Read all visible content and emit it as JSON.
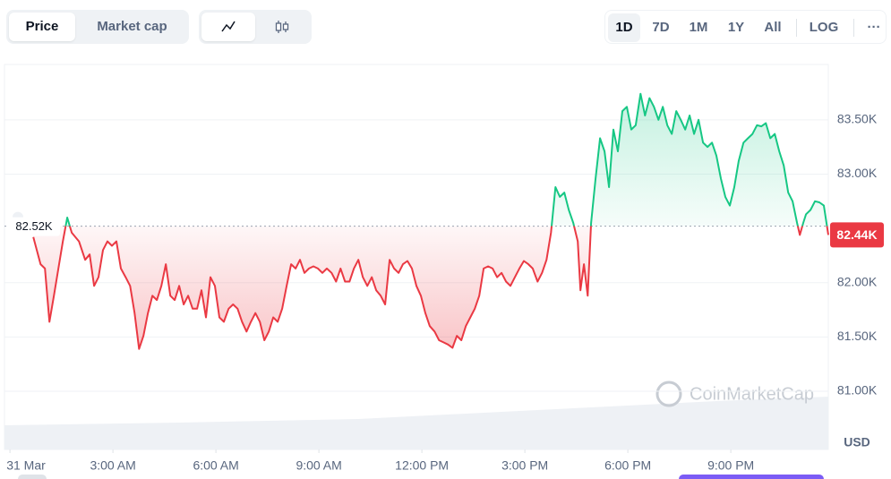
{
  "toolbar": {
    "metric_tabs": [
      "Price",
      "Market cap"
    ],
    "range_tabs": [
      "1D",
      "7D",
      "1M",
      "1Y",
      "All"
    ],
    "scale_toggle": "LOG",
    "more": "···"
  },
  "watermark": "CoinMarketCap",
  "chart_data": {
    "type": "line",
    "y_axis_label": "USD",
    "grid": true,
    "color_above": "#16c784",
    "color_below": "#ea3943",
    "baseline": {
      "value": 82.52,
      "label": "82.52K"
    },
    "last_price": {
      "value": 82.44,
      "label": "82.44K"
    },
    "xlim": [
      -0.16,
      23.84
    ],
    "ylim": [
      80.48,
      84.01
    ],
    "xticks": [
      {
        "value": 0,
        "label": "31 Mar"
      },
      {
        "value": 3,
        "label": "3:00 AM"
      },
      {
        "value": 6,
        "label": "6:00 AM"
      },
      {
        "value": 9,
        "label": "9:00 AM"
      },
      {
        "value": 12,
        "label": "12:00 PM"
      },
      {
        "value": 15,
        "label": "3:00 PM"
      },
      {
        "value": 18,
        "label": "6:00 PM"
      },
      {
        "value": 21,
        "label": "9:00 PM"
      }
    ],
    "yticks": [
      {
        "value": 81,
        "label": "81.00K"
      },
      {
        "value": 81.5,
        "label": "81.50K"
      },
      {
        "value": 82,
        "label": "82.00K"
      },
      {
        "value": 83,
        "label": "83.00K"
      },
      {
        "value": 83.5,
        "label": "83.50K"
      }
    ],
    "x": [
      0.68,
      0.89,
      1.02,
      1.15,
      1.28,
      1.41,
      1.54,
      1.67,
      1.8,
      2.01,
      2.19,
      2.32,
      2.45,
      2.58,
      2.71,
      2.84,
      2.97,
      3.1,
      3.23,
      3.37,
      3.5,
      3.63,
      3.76,
      3.89,
      4.02,
      4.15,
      4.28,
      4.41,
      4.54,
      4.67,
      4.8,
      4.93,
      5.06,
      5.19,
      5.32,
      5.45,
      5.58,
      5.71,
      5.84,
      5.97,
      6.1,
      6.23,
      6.37,
      6.5,
      6.63,
      6.76,
      6.89,
      7.02,
      7.15,
      7.28,
      7.41,
      7.54,
      7.67,
      7.8,
      7.93,
      8.06,
      8.19,
      8.32,
      8.45,
      8.58,
      8.71,
      8.84,
      8.97,
      9.1,
      9.23,
      9.37,
      9.5,
      9.63,
      9.76,
      9.89,
      10.02,
      10.15,
      10.28,
      10.41,
      10.54,
      10.67,
      10.8,
      10.93,
      11.06,
      11.19,
      11.32,
      11.45,
      11.58,
      11.71,
      11.84,
      11.97,
      12.1,
      12.23,
      12.37,
      12.5,
      12.63,
      12.76,
      12.89,
      13.02,
      13.15,
      13.28,
      13.41,
      13.54,
      13.67,
      13.8,
      13.93,
      14.06,
      14.19,
      14.32,
      14.45,
      14.58,
      14.71,
      14.84,
      14.97,
      15.1,
      15.23,
      15.37,
      15.5,
      15.63,
      15.76,
      15.89,
      16.02,
      16.15,
      16.28,
      16.41,
      16.54,
      16.62,
      16.72,
      16.83,
      16.93,
      17.06,
      17.19,
      17.32,
      17.45,
      17.58,
      17.71,
      17.84,
      17.97,
      18.1,
      18.23,
      18.37,
      18.5,
      18.63,
      18.76,
      18.89,
      19.02,
      19.15,
      19.28,
      19.41,
      19.54,
      19.67,
      19.8,
      19.93,
      20.06,
      20.19,
      20.32,
      20.45,
      20.58,
      20.71,
      20.84,
      20.97,
      21.1,
      21.23,
      21.37,
      21.5,
      21.63,
      21.76,
      21.89,
      22.02,
      22.15,
      22.28,
      22.41,
      22.54,
      22.67,
      22.8,
      22.93,
      23.01,
      23.11,
      23.19,
      23.32,
      23.45,
      23.58,
      23.71,
      23.84
    ],
    "values": [
      82.42,
      82.17,
      82.13,
      81.64,
      81.88,
      82.13,
      82.38,
      82.6,
      82.46,
      82.38,
      82.21,
      82.26,
      81.97,
      82.05,
      82.3,
      82.38,
      82.34,
      82.38,
      82.13,
      82.05,
      81.97,
      81.72,
      81.39,
      81.51,
      81.72,
      81.88,
      81.84,
      81.97,
      82.17,
      81.88,
      81.84,
      81.97,
      81.8,
      81.88,
      81.76,
      81.76,
      81.93,
      81.68,
      82.05,
      81.97,
      81.68,
      81.64,
      81.76,
      81.8,
      81.76,
      81.64,
      81.55,
      81.64,
      81.72,
      81.64,
      81.47,
      81.55,
      81.68,
      81.64,
      81.76,
      81.97,
      82.17,
      82.13,
      82.21,
      82.09,
      82.13,
      82.15,
      82.13,
      82.09,
      82.13,
      82.09,
      82.01,
      82.13,
      82.01,
      82.01,
      82.13,
      82.21,
      82.05,
      81.97,
      82.05,
      81.93,
      81.88,
      81.8,
      82.21,
      82.13,
      82.09,
      82.17,
      82.2,
      82.13,
      81.97,
      81.88,
      81.72,
      81.6,
      81.55,
      81.47,
      81.45,
      81.43,
      81.4,
      81.51,
      81.47,
      81.6,
      81.68,
      81.76,
      81.88,
      82.13,
      82.15,
      82.13,
      82.05,
      82.09,
      82.01,
      81.97,
      82.05,
      82.13,
      82.2,
      82.17,
      82.13,
      82.01,
      82.09,
      82.21,
      82.46,
      82.88,
      82.79,
      82.83,
      82.67,
      82.55,
      82.38,
      81.93,
      82.17,
      81.88,
      82.55,
      82.96,
      83.33,
      83.21,
      82.88,
      83.41,
      83.21,
      83.58,
      83.62,
      83.41,
      83.45,
      83.74,
      83.54,
      83.7,
      83.62,
      83.5,
      83.62,
      83.45,
      83.37,
      83.58,
      83.5,
      83.41,
      83.54,
      83.37,
      83.5,
      83.29,
      83.25,
      83.29,
      83.17,
      82.96,
      82.79,
      82.71,
      82.88,
      83.12,
      83.29,
      83.33,
      83.37,
      83.45,
      83.44,
      83.47,
      83.33,
      83.37,
      83.21,
      83.08,
      82.83,
      82.75,
      82.55,
      82.44,
      82.55,
      82.63,
      82.67,
      82.75,
      82.74,
      82.71,
      82.44
    ]
  }
}
